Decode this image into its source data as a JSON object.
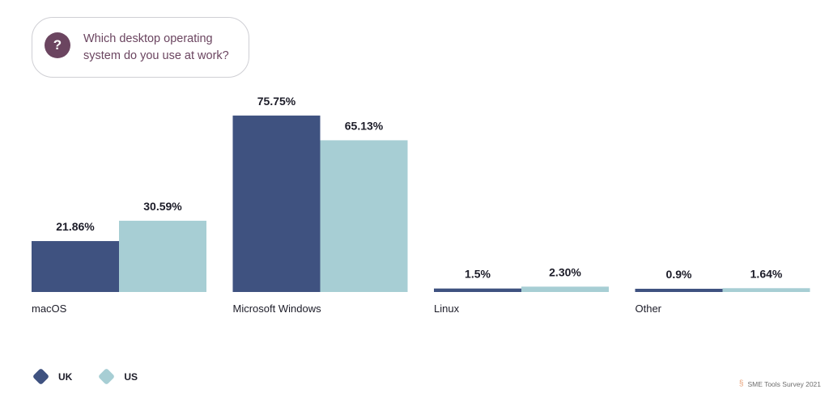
{
  "question": {
    "text": "Which desktop operating system do you use at work?"
  },
  "chart_data": {
    "type": "bar",
    "categories": [
      "macOS",
      "Microsoft Windows",
      "Linux",
      "Other"
    ],
    "series": [
      {
        "name": "UK",
        "color": "#3f5280",
        "values": [
          21.86,
          75.75,
          1.5,
          0.9
        ],
        "labels": [
          "21.86%",
          "75.75%",
          "1.5%",
          "0.9%"
        ]
      },
      {
        "name": "US",
        "color": "#a7ced4",
        "values": [
          30.59,
          65.13,
          2.3,
          1.64
        ],
        "labels": [
          "30.59%",
          "65.13%",
          "2.30%",
          "1.64%"
        ]
      }
    ],
    "ylim": [
      0,
      100
    ],
    "grid": false,
    "legend_position": "bottom-left"
  },
  "source": {
    "text": "SME Tools Survey 2021",
    "icon": "survey-logo-icon"
  }
}
